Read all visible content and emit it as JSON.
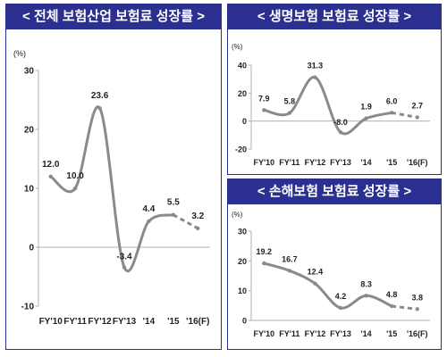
{
  "chart_data": [
    {
      "type": "line",
      "title": "< 전체 보험산업 보험료 성장률 >",
      "unit": "(%)",
      "categories": [
        "FY'10",
        "FY'11",
        "FY'12",
        "FY'13",
        "'14",
        "'15",
        "'16(F)"
      ],
      "values": [
        12.0,
        10.0,
        23.6,
        -3.4,
        4.4,
        5.5,
        3.2
      ],
      "value_labels": [
        "12.0",
        "10.0",
        "23.6",
        "-3.4",
        "4.4",
        "5.5",
        "3.2"
      ],
      "forecast_from_index": 5,
      "ylim": [
        -10,
        30
      ],
      "yticks": [
        -10,
        0,
        10,
        20,
        30
      ],
      "ytick_labels": [
        "-10",
        "0",
        "10",
        "20",
        "30"
      ],
      "xlabel": "",
      "ylabel": "",
      "grid": false,
      "line_color": "#8a8a8a"
    },
    {
      "type": "line",
      "title": "< 생명보험 보험료 성장률 >",
      "unit": "(%)",
      "categories": [
        "FY'10",
        "FY'11",
        "FY'12",
        "FY'13",
        "'14",
        "'15",
        "'16(F)"
      ],
      "values": [
        7.9,
        5.8,
        31.3,
        -8.0,
        1.9,
        6.0,
        2.7
      ],
      "value_labels": [
        "7.9",
        "5.8",
        "31.3",
        "-8.0",
        "1.9",
        "6.0",
        "2.7"
      ],
      "forecast_from_index": 5,
      "ylim": [
        -20,
        40
      ],
      "yticks": [
        -20,
        0,
        20,
        40
      ],
      "ytick_labels": [
        "-20",
        "0",
        "20",
        "40"
      ],
      "xlabel": "",
      "ylabel": "",
      "grid": false,
      "line_color": "#8a8a8a"
    },
    {
      "type": "line",
      "title": "< 손해보험 보험료 성장률 >",
      "unit": "(%)",
      "categories": [
        "FY'10",
        "FY'11",
        "FY'12",
        "FY'13",
        "'14",
        "'15",
        "'16(F)"
      ],
      "values": [
        19.2,
        16.7,
        12.4,
        4.2,
        8.3,
        4.8,
        3.8
      ],
      "value_labels": [
        "19.2",
        "16.7",
        "12.4",
        "4.2",
        "8.3",
        "4.8",
        "3.8"
      ],
      "forecast_from_index": 5,
      "ylim": [
        0,
        30
      ],
      "yticks": [
        0,
        10,
        20,
        30
      ],
      "ytick_labels": [
        "0",
        "10",
        "20",
        "30"
      ],
      "xlabel": "",
      "ylabel": "",
      "grid": false,
      "line_color": "#8a8a8a"
    }
  ],
  "colors": {
    "title_bar": "#2b2f8f",
    "title_text": "#ffffff",
    "line": "#8a8a8a",
    "axis": "#b0b0b0",
    "text": "#222222"
  }
}
